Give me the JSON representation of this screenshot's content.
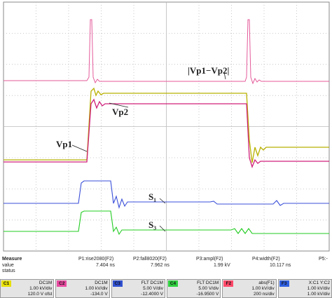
{
  "trace_labels": [
    "|Vp1−Vp2|",
    "Vp2",
    "Vp1",
    "S₁",
    "S₃"
  ],
  "measure": {
    "headers": [
      "Measure",
      "P1:rise2080(F2)",
      "P2:fall8020(F2)",
      "P3:ampl(F2)",
      "P4:width(F2)",
      "P5:-"
    ],
    "rows": [
      {
        "label": "value",
        "cells": [
          "7.404 ns",
          "7.962 ns",
          "1.99 kV",
          "10.117 ns"
        ]
      },
      {
        "label": "status",
        "cells": []
      }
    ]
  },
  "channels": [
    {
      "id": "C1",
      "coupling": "DC1M",
      "scale": "1.00 kV/div",
      "offset": "120.0 V ofst"
    },
    {
      "id": "C2",
      "coupling": "DC1M",
      "scale": "1.00 kV/div",
      "offset": "-134.0 V"
    },
    {
      "id": "C3",
      "coupling": "FLT DC1M",
      "scale": "5.00 V/div",
      "offset": "-12.4000 V"
    },
    {
      "id": "C4",
      "coupling": "FLT DC1M",
      "scale": "5.00 V/div",
      "offset": "-16.9500 V"
    },
    {
      "id": "F2",
      "coupling": "abs(F1)",
      "scale": "1.00 kV/div",
      "offset": "200 ns/div"
    },
    {
      "id": "F3",
      "coupling": "X:C1 Y:C2",
      "scale": "1.00 kV/div",
      "offset": "1.00 kV/div"
    }
  ]
}
